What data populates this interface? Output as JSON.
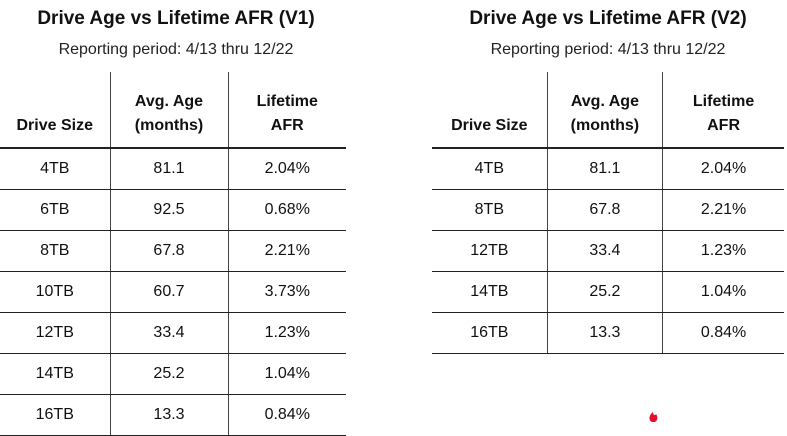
{
  "v1": {
    "title": "Drive Age vs Lifetime AFR (V1)",
    "subtitle": "Reporting period: 4/13 thru 12/22",
    "headers": [
      "Drive Size",
      "Avg. Age\n(months)",
      "Lifetime\nAFR"
    ],
    "rows": [
      [
        "4TB",
        "81.1",
        "2.04%"
      ],
      [
        "6TB",
        "92.5",
        "0.68%"
      ],
      [
        "8TB",
        "67.8",
        "2.21%"
      ],
      [
        "10TB",
        "60.7",
        "3.73%"
      ],
      [
        "12TB",
        "33.4",
        "1.23%"
      ],
      [
        "14TB",
        "25.2",
        "1.04%"
      ],
      [
        "16TB",
        "13.3",
        "0.84%"
      ]
    ]
  },
  "v2": {
    "title": "Drive Age vs Lifetime AFR (V2)",
    "subtitle": "Reporting period: 4/13 thru 12/22",
    "headers": [
      "Drive Size",
      "Avg. Age\n(months)",
      "Lifetime\nAFR"
    ],
    "rows": [
      [
        "4TB",
        "81.1",
        "2.04%"
      ],
      [
        "8TB",
        "67.8",
        "2.21%"
      ],
      [
        "12TB",
        "33.4",
        "1.23%"
      ],
      [
        "14TB",
        "25.2",
        "1.04%"
      ],
      [
        "16TB",
        "13.3",
        "0.84%"
      ]
    ]
  },
  "colors": {
    "logo_accent": "#e0112b",
    "text": "#111111",
    "rule": "#222222"
  },
  "logo": {
    "icon": "brand-flame-icon"
  }
}
